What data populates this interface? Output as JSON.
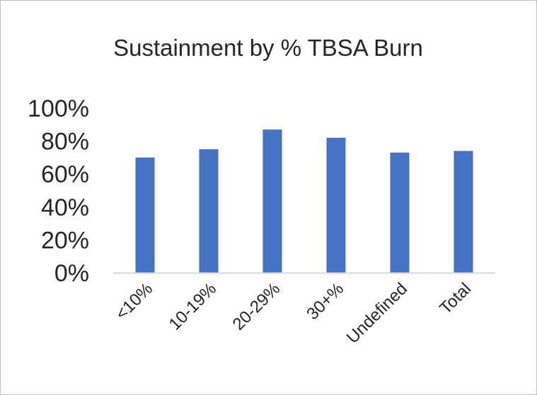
{
  "chart_data": {
    "type": "bar",
    "title": "Sustainment by % TBSA Burn",
    "xlabel": "",
    "ylabel": "",
    "categories": [
      "<10%",
      "10-19%",
      "20-29%",
      "30+%",
      "Undefined",
      "Total"
    ],
    "series": [
      {
        "values": [
          70,
          75,
          87,
          82,
          73,
          74
        ]
      }
    ],
    "ylim": [
      0,
      100
    ],
    "yticks": [
      0,
      20,
      40,
      60,
      80,
      100
    ],
    "ytick_labels": [
      "0%",
      "20%",
      "40%",
      "60%",
      "80%",
      "100%"
    ],
    "value_unit": "%",
    "grid": false,
    "legend": "none",
    "colors": {
      "bar": "#4472c4",
      "axis": "#d9d9d9",
      "text": "#262626",
      "border": "#bfbfbf"
    }
  }
}
